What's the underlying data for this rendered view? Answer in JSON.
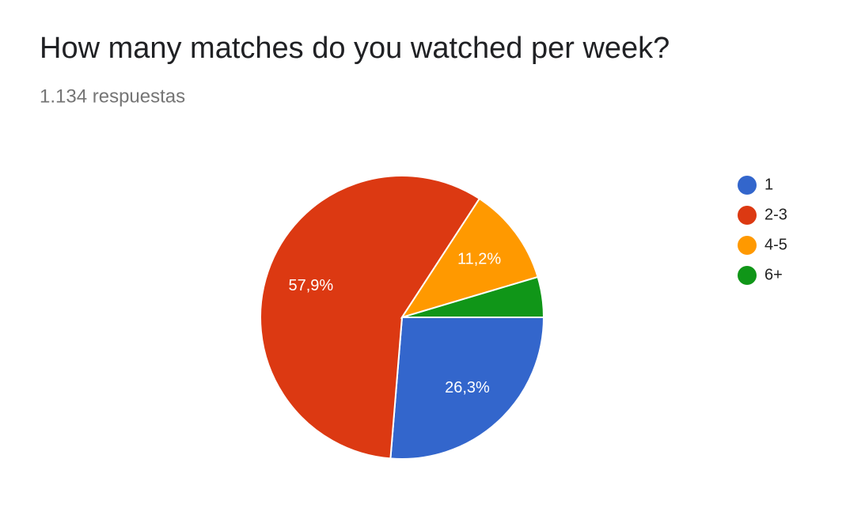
{
  "chart_data": {
    "type": "pie",
    "title": "How many matches do you watched per week?",
    "subtitle": "1.134 respuestas",
    "categories": [
      "1",
      "2-3",
      "4-5",
      "6+"
    ],
    "values": [
      26.3,
      57.9,
      11.2,
      4.6
    ],
    "value_labels": [
      "26,3%",
      "57,9%",
      "11,2%",
      null
    ],
    "colors": [
      "#3366cc",
      "#dc3912",
      "#ff9900",
      "#109618"
    ],
    "legend": "right"
  }
}
